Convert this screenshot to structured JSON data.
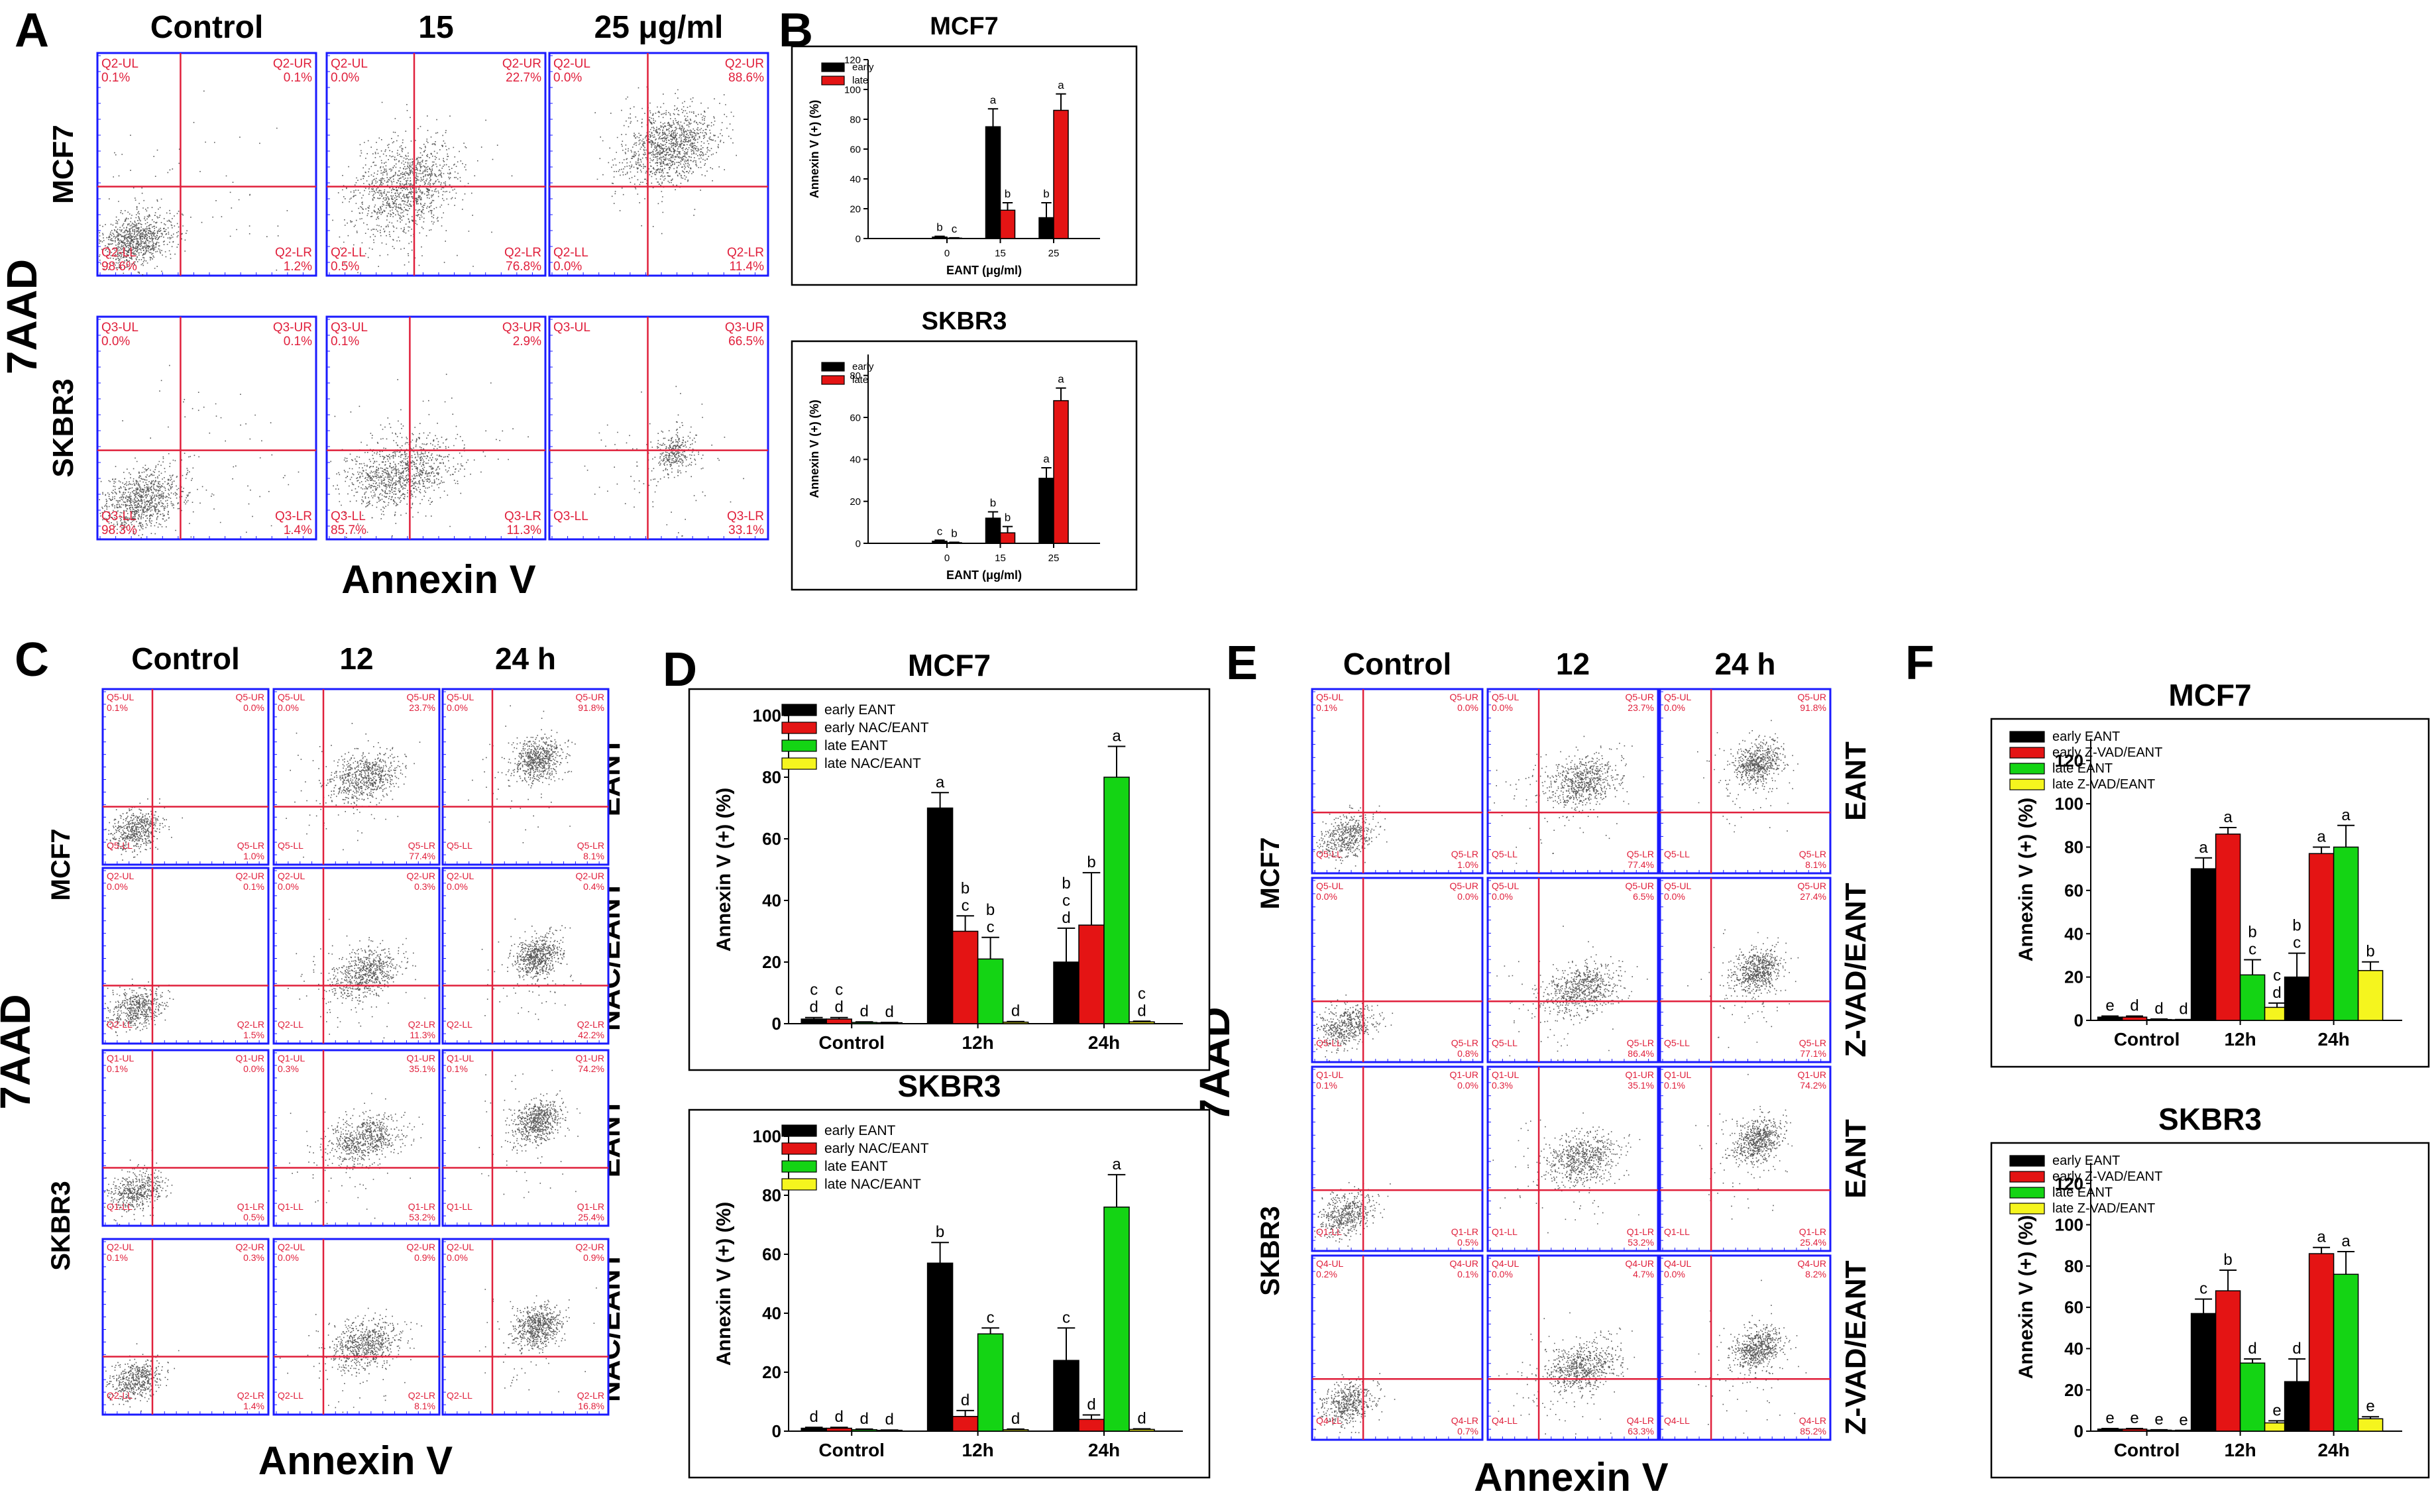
{
  "panel_labels": {
    "A": "A",
    "B": "B",
    "C": "C",
    "D": "D",
    "E": "E",
    "F": "F"
  },
  "colors": {
    "early": "#000000",
    "late": "#e41414",
    "early_eant": "#000000",
    "early_inh": "#e41414",
    "late_eant": "#14d414",
    "late_inh": "#f5f51e",
    "gate": "#e0203c",
    "frame": "#1a1aff",
    "quad_text": "#e0203c"
  },
  "panelA": {
    "col_headers": [
      "Control",
      "15",
      "25 μg/ml"
    ],
    "row_labels": [
      "MCF7",
      "SKBR3"
    ],
    "ylabel": "7AAD",
    "xlabel": "Annexin V",
    "rows": [
      {
        "quads": [
          {
            "ul": "Q2-UL",
            "ul_v": "0.1%",
            "ur": "Q2-UR",
            "ur_v": "0.1%",
            "ll": "Q2-LL",
            "ll_v": "98.6%",
            "lr": "Q2-LR",
            "lr_v": "1.2%"
          },
          {
            "ul": "Q2-UL",
            "ul_v": "0.0%",
            "ur": "Q2-UR",
            "ur_v": "22.7%",
            "ll": "Q2-LL",
            "ll_v": "0.5%",
            "lr": "Q2-LR",
            "lr_v": "76.8%"
          },
          {
            "ul": "Q2-UL",
            "ul_v": "0.0%",
            "ur": "Q2-UR",
            "ur_v": "88.6%",
            "ll": "Q2-LL",
            "ll_v": "0.0%",
            "lr": "Q2-LR",
            "lr_v": "11.4%"
          }
        ]
      },
      {
        "quads": [
          {
            "ul": "Q3-UL",
            "ul_v": "0.0%",
            "ur": "Q3-UR",
            "ur_v": "0.1%",
            "ll": "Q3-LL",
            "ll_v": "98.3%",
            "lr": "Q3-LR",
            "lr_v": "1.4%"
          },
          {
            "ul": "Q3-UL",
            "ul_v": "0.1%",
            "ur": "Q3-UR",
            "ur_v": "2.9%",
            "ll": "Q3-LL",
            "ll_v": "85.7%",
            "lr": "Q3-LR",
            "lr_v": "11.3%"
          },
          {
            "ul": "Q3-UL",
            "ul_v": "",
            "ur": "Q3-UR",
            "ur_v": "66.5%",
            "ll": "Q3-LL",
            "ll_v": "",
            "lr": "Q3-LR",
            "lr_v": "33.1%"
          }
        ]
      }
    ]
  },
  "panelC": {
    "col_headers": [
      "Control",
      "12",
      "24 h"
    ],
    "row_labels": [
      "MCF7",
      "SKBR3"
    ],
    "side_labels": [
      "EANT",
      "NAC/EANT",
      "EANT",
      "NAC/EANT"
    ],
    "ylabel": "7AAD",
    "xlabel": "Annexin V",
    "rows": [
      {
        "quads": [
          {
            "ul": "Q5-UL",
            "ul_v": "0.1%",
            "ur": "Q5-UR",
            "ur_v": "0.0%",
            "ll": "Q5-LL",
            "ll_v": "",
            "lr": "Q5-LR",
            "lr_v": "1.0%"
          },
          {
            "ul": "Q5-UL",
            "ul_v": "0.0%",
            "ur": "Q5-UR",
            "ur_v": "23.7%",
            "ll": "Q5-LL",
            "ll_v": "",
            "lr": "Q5-LR",
            "lr_v": "77.4%"
          },
          {
            "ul": "Q5-UL",
            "ul_v": "0.0%",
            "ur": "Q5-UR",
            "ur_v": "91.8%",
            "ll": "Q5-LL",
            "ll_v": "",
            "lr": "Q5-LR",
            "lr_v": "8.1%"
          }
        ]
      },
      {
        "quads": [
          {
            "ul": "Q2-UL",
            "ul_v": "0.0%",
            "ur": "Q2-UR",
            "ur_v": "0.1%",
            "ll": "Q2-LL",
            "ll_v": "",
            "lr": "Q2-LR",
            "lr_v": "1.5%"
          },
          {
            "ul": "Q2-UL",
            "ul_v": "0.0%",
            "ur": "Q2-UR",
            "ur_v": "0.3%",
            "ll": "Q2-LL",
            "ll_v": "",
            "lr": "Q2-LR",
            "lr_v": "11.3%"
          },
          {
            "ul": "Q2-UL",
            "ul_v": "0.0%",
            "ur": "Q2-UR",
            "ur_v": "0.4%",
            "ll": "Q2-LL",
            "ll_v": "",
            "lr": "Q2-LR",
            "lr_v": "42.2%"
          }
        ]
      },
      {
        "quads": [
          {
            "ul": "Q1-UL",
            "ul_v": "0.1%",
            "ur": "Q1-UR",
            "ur_v": "0.0%",
            "ll": "Q1-LL",
            "ll_v": "",
            "lr": "Q1-LR",
            "lr_v": "0.5%"
          },
          {
            "ul": "Q1-UL",
            "ul_v": "0.3%",
            "ur": "Q1-UR",
            "ur_v": "35.1%",
            "ll": "Q1-LL",
            "ll_v": "",
            "lr": "Q1-LR",
            "lr_v": "53.2%"
          },
          {
            "ul": "Q1-UL",
            "ul_v": "0.1%",
            "ur": "Q1-UR",
            "ur_v": "74.2%",
            "ll": "Q1-LL",
            "ll_v": "",
            "lr": "Q1-LR",
            "lr_v": "25.4%"
          }
        ]
      },
      {
        "quads": [
          {
            "ul": "Q2-UL",
            "ul_v": "0.1%",
            "ur": "Q2-UR",
            "ur_v": "0.3%",
            "ll": "Q2-LL",
            "ll_v": "",
            "lr": "Q2-LR",
            "lr_v": "1.4%"
          },
          {
            "ul": "Q2-UL",
            "ul_v": "0.0%",
            "ur": "Q2-UR",
            "ur_v": "0.9%",
            "ll": "Q2-LL",
            "ll_v": "",
            "lr": "Q2-LR",
            "lr_v": "8.1%"
          },
          {
            "ul": "Q2-UL",
            "ul_v": "0.0%",
            "ur": "Q2-UR",
            "ur_v": "0.9%",
            "ll": "Q2-LL",
            "ll_v": "",
            "lr": "Q2-LR",
            "lr_v": "16.8%"
          }
        ]
      }
    ]
  },
  "panelE": {
    "col_headers": [
      "Control",
      "12",
      "24 h"
    ],
    "row_labels": [
      "MCF7",
      "SKBR3"
    ],
    "side_labels": [
      "EANT",
      "Z-VAD/EANT",
      "EANT",
      "Z-VAD/EANT"
    ],
    "ylabel": "7AAD",
    "xlabel": "Annexin V",
    "rows": [
      {
        "quads": [
          {
            "ul": "Q5-UL",
            "ul_v": "0.1%",
            "ur": "Q5-UR",
            "ur_v": "0.0%",
            "ll": "Q5-LL",
            "ll_v": "",
            "lr": "Q5-LR",
            "lr_v": "1.0%"
          },
          {
            "ul": "Q5-UL",
            "ul_v": "0.0%",
            "ur": "Q5-UR",
            "ur_v": "23.7%",
            "ll": "Q5-LL",
            "ll_v": "",
            "lr": "Q5-LR",
            "lr_v": "77.4%"
          },
          {
            "ul": "Q5-UL",
            "ul_v": "0.0%",
            "ur": "Q5-UR",
            "ur_v": "91.8%",
            "ll": "Q5-LL",
            "ll_v": "",
            "lr": "Q5-LR",
            "lr_v": "8.1%"
          }
        ]
      },
      {
        "quads": [
          {
            "ul": "Q5-UL",
            "ul_v": "0.0%",
            "ur": "Q5-UR",
            "ur_v": "0.0%",
            "ll": "Q5-LL",
            "ll_v": "",
            "lr": "Q5-LR",
            "lr_v": "0.8%"
          },
          {
            "ul": "Q5-UL",
            "ul_v": "0.0%",
            "ur": "Q5-UR",
            "ur_v": "6.5%",
            "ll": "Q5-LL",
            "ll_v": "",
            "lr": "Q5-LR",
            "lr_v": "86.4%"
          },
          {
            "ul": "Q5-UL",
            "ul_v": "0.0%",
            "ur": "Q5-UR",
            "ur_v": "27.4%",
            "ll": "Q5-LL",
            "ll_v": "",
            "lr": "Q5-LR",
            "lr_v": "77.1%"
          }
        ]
      },
      {
        "quads": [
          {
            "ul": "Q1-UL",
            "ul_v": "0.1%",
            "ur": "Q1-UR",
            "ur_v": "0.0%",
            "ll": "Q1-LL",
            "ll_v": "",
            "lr": "Q1-LR",
            "lr_v": "0.5%"
          },
          {
            "ul": "Q1-UL",
            "ul_v": "0.3%",
            "ur": "Q1-UR",
            "ur_v": "35.1%",
            "ll": "Q1-LL",
            "ll_v": "",
            "lr": "Q1-LR",
            "lr_v": "53.2%"
          },
          {
            "ul": "Q1-UL",
            "ul_v": "0.1%",
            "ur": "Q1-UR",
            "ur_v": "74.2%",
            "ll": "Q1-LL",
            "ll_v": "",
            "lr": "Q1-LR",
            "lr_v": "25.4%"
          }
        ]
      },
      {
        "quads": [
          {
            "ul": "Q4-UL",
            "ul_v": "0.2%",
            "ur": "Q4-UR",
            "ur_v": "0.1%",
            "ll": "Q4-LL",
            "ll_v": "",
            "lr": "Q4-LR",
            "lr_v": "0.7%"
          },
          {
            "ul": "Q4-UL",
            "ul_v": "0.0%",
            "ur": "Q4-UR",
            "ur_v": "4.7%",
            "ll": "Q4-LL",
            "ll_v": "",
            "lr": "Q4-LR",
            "lr_v": "63.3%"
          },
          {
            "ul": "Q4-UL",
            "ul_v": "0.0%",
            "ur": "Q4-UR",
            "ur_v": "8.2%",
            "ll": "Q4-LL",
            "ll_v": "",
            "lr": "Q4-LR",
            "lr_v": "85.2%"
          }
        ]
      }
    ]
  },
  "chart_data": [
    {
      "id": "B1",
      "type": "bar",
      "title": "MCF7",
      "xlabel": "EANT (μg/ml)",
      "ylabel": "Annexin V (+) (%)",
      "categories": [
        "0",
        "15",
        "25"
      ],
      "ylim": [
        0,
        120
      ],
      "yticks": [
        0,
        20,
        40,
        60,
        80,
        100,
        120
      ],
      "series": [
        {
          "name": "early",
          "color": "#000000",
          "values": [
            1,
            75,
            14
          ],
          "errors": [
            0.5,
            12,
            10
          ],
          "letters": [
            "b",
            "a",
            "b"
          ]
        },
        {
          "name": "late",
          "color": "#e41414",
          "values": [
            0.3,
            19,
            86
          ],
          "errors": [
            0.2,
            5,
            11
          ],
          "letters": [
            "c",
            "b",
            "a"
          ]
        }
      ]
    },
    {
      "id": "B2",
      "type": "bar",
      "title": "SKBR3",
      "xlabel": "EANT (μg/ml)",
      "ylabel": "Annexin V (+) (%)",
      "categories": [
        "0",
        "15",
        "25"
      ],
      "ylim": [
        0,
        90
      ],
      "yticks": [
        0,
        20,
        40,
        60,
        80
      ],
      "series": [
        {
          "name": "early",
          "color": "#000000",
          "values": [
            1,
            12,
            31
          ],
          "errors": [
            0.5,
            3,
            5
          ],
          "letters": [
            "c",
            "b",
            "a"
          ]
        },
        {
          "name": "late",
          "color": "#e41414",
          "values": [
            0.3,
            5,
            68
          ],
          "errors": [
            0.2,
            3,
            6
          ],
          "letters": [
            "b",
            "b",
            "a"
          ]
        }
      ]
    },
    {
      "id": "D1",
      "type": "bar",
      "title": "MCF7",
      "xlabel": "",
      "ylabel": "Annexin V (+) (%)",
      "categories": [
        "Control",
        "12h",
        "24h"
      ],
      "ylim": [
        0,
        100
      ],
      "yticks": [
        0,
        20,
        40,
        60,
        80,
        100
      ],
      "series": [
        {
          "name": "early EANT",
          "color": "#000000",
          "values": [
            1.5,
            70,
            20
          ],
          "errors": [
            0.5,
            5,
            11
          ],
          "letters": [
            "c\nd",
            "a",
            "b\nc\nd"
          ]
        },
        {
          "name": "early NAC/EANT",
          "color": "#e41414",
          "values": [
            1.5,
            30,
            32
          ],
          "errors": [
            0.5,
            5,
            17
          ],
          "letters": [
            "c\nd",
            "b\nc",
            "b"
          ]
        },
        {
          "name": "late EANT",
          "color": "#14d414",
          "values": [
            0.4,
            21,
            80
          ],
          "errors": [
            0.2,
            7,
            10
          ],
          "letters": [
            "d",
            "b\nc",
            "a"
          ]
        },
        {
          "name": "late NAC/EANT",
          "color": "#f5f51e",
          "values": [
            0.3,
            0.5,
            0.6
          ],
          "errors": [
            0.1,
            0.2,
            0.2
          ],
          "letters": [
            "d",
            "d",
            "c\nd"
          ]
        }
      ]
    },
    {
      "id": "D2",
      "type": "bar",
      "title": "SKBR3",
      "xlabel": "",
      "ylabel": "Annexin V (+) (%)",
      "categories": [
        "Control",
        "12h",
        "24h"
      ],
      "ylim": [
        0,
        100
      ],
      "yticks": [
        0,
        20,
        40,
        60,
        80,
        100
      ],
      "series": [
        {
          "name": "early EANT",
          "color": "#000000",
          "values": [
            1,
            57,
            24
          ],
          "errors": [
            0.3,
            7,
            11
          ],
          "letters": [
            "d",
            "b",
            "c"
          ]
        },
        {
          "name": "early NAC/EANT",
          "color": "#e41414",
          "values": [
            1,
            5,
            4
          ],
          "errors": [
            0.3,
            2,
            1.5
          ],
          "letters": [
            "d",
            "d",
            "d"
          ]
        },
        {
          "name": "late EANT",
          "color": "#14d414",
          "values": [
            0.5,
            33,
            76
          ],
          "errors": [
            0.2,
            2,
            11
          ],
          "letters": [
            "d",
            "c",
            "a"
          ]
        },
        {
          "name": "late NAC/EANT",
          "color": "#f5f51e",
          "values": [
            0.3,
            0.5,
            0.6
          ],
          "errors": [
            0.1,
            0.2,
            0.2
          ],
          "letters": [
            "d",
            "d",
            "d"
          ]
        }
      ]
    },
    {
      "id": "F1",
      "type": "bar",
      "title": "MCF7",
      "xlabel": "",
      "ylabel": "Annexin V (+) (%)",
      "categories": [
        "Control",
        "12h",
        "24h"
      ],
      "ylim": [
        0,
        130
      ],
      "yticks": [
        0,
        20,
        40,
        60,
        80,
        100,
        120
      ],
      "series": [
        {
          "name": "early EANT",
          "color": "#000000",
          "values": [
            1.5,
            70,
            20
          ],
          "errors": [
            0.5,
            5,
            11
          ],
          "letters": [
            "e",
            "a",
            "b\nc"
          ]
        },
        {
          "name": "early Z-VAD/EANT",
          "color": "#e41414",
          "values": [
            1.5,
            86,
            77
          ],
          "errors": [
            0.5,
            3,
            3
          ],
          "letters": [
            "d",
            "a",
            "a"
          ]
        },
        {
          "name": "late EANT",
          "color": "#14d414",
          "values": [
            0.4,
            21,
            80
          ],
          "errors": [
            0.2,
            7,
            10
          ],
          "letters": [
            "d",
            "b\nc",
            "a"
          ]
        },
        {
          "name": "late Z-VAD/EANT",
          "color": "#f5f51e",
          "values": [
            0.3,
            6,
            23
          ],
          "errors": [
            0.1,
            2,
            4
          ],
          "letters": [
            "d",
            "c\nd",
            "b"
          ]
        }
      ]
    },
    {
      "id": "F2",
      "type": "bar",
      "title": "SKBR3",
      "xlabel": "",
      "ylabel": "Annexin V (+) (%)",
      "categories": [
        "Control",
        "12h",
        "24h"
      ],
      "ylim": [
        0,
        130
      ],
      "yticks": [
        0,
        20,
        40,
        60,
        80,
        100,
        120
      ],
      "series": [
        {
          "name": "early EANT",
          "color": "#000000",
          "values": [
            1,
            57,
            24
          ],
          "errors": [
            0.3,
            7,
            11
          ],
          "letters": [
            "e",
            "c",
            "d"
          ]
        },
        {
          "name": "early Z-VAD/EANT",
          "color": "#e41414",
          "values": [
            1,
            68,
            86
          ],
          "errors": [
            0.3,
            10,
            3
          ],
          "letters": [
            "e",
            "b",
            "a"
          ]
        },
        {
          "name": "late EANT",
          "color": "#14d414",
          "values": [
            0.5,
            33,
            76
          ],
          "errors": [
            0.2,
            2,
            11
          ],
          "letters": [
            "e",
            "d",
            "a"
          ]
        },
        {
          "name": "late Z-VAD/EANT",
          "color": "#f5f51e",
          "values": [
            0.3,
            4,
            6
          ],
          "errors": [
            0.1,
            1,
            1
          ],
          "letters": [
            "e",
            "e",
            "e"
          ]
        }
      ]
    }
  ]
}
